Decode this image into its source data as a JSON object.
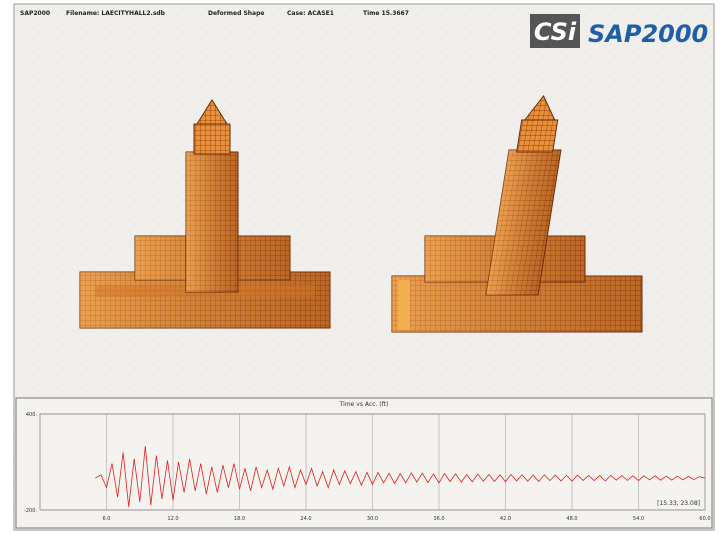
{
  "header": {
    "app": "SAP2000",
    "filename": "Filename: LAECITYHALL2.sdb",
    "view": "Deformed Shape",
    "case": "Case: ACASE1",
    "time": "Time 15.3667"
  },
  "logo": {
    "mark": "CSi",
    "product": "SAP2000"
  },
  "chart_data": {
    "type": "line",
    "title": "Time vs Acc. (ft)",
    "x": [
      5,
      5.5,
      6,
      6.5,
      7,
      7.5,
      8,
      8.5,
      9,
      9.5,
      10,
      10.5,
      11,
      11.5,
      12,
      12.5,
      13,
      13.5,
      14,
      14.5,
      15,
      15.5,
      16,
      16.5,
      17,
      17.5,
      18,
      18.5,
      19,
      19.5,
      20,
      20.5,
      21,
      21.5,
      22,
      22.5,
      23,
      23.5,
      24,
      24.5,
      25,
      25.5,
      26,
      26.5,
      27,
      27.5,
      28,
      28.5,
      29,
      29.5,
      30,
      30.5,
      31,
      31.5,
      32,
      32.5,
      33,
      33.5,
      34,
      34.5,
      35,
      35.5,
      36,
      36.5,
      37,
      37.5,
      38,
      38.5,
      39,
      39.5,
      40,
      40.5,
      41,
      41.5,
      42,
      42.5,
      43,
      43.5,
      44,
      44.5,
      45,
      45.5,
      46,
      46.5,
      47,
      47.5,
      48,
      48.5,
      49,
      49.5,
      50,
      50.5,
      51,
      51.5,
      52,
      52.5,
      53,
      53.5,
      54,
      54.5,
      55,
      55.5,
      56,
      56.5,
      57,
      57.5,
      58,
      58.5,
      59,
      59.5,
      60
    ],
    "series": [
      {
        "color": "#e02020",
        "values": [
          0,
          20,
          -60,
          90,
          -120,
          160,
          -180,
          120,
          -150,
          200,
          -170,
          140,
          -130,
          110,
          -140,
          100,
          -90,
          120,
          -80,
          90,
          -100,
          70,
          -90,
          80,
          -60,
          90,
          -70,
          60,
          -80,
          70,
          -60,
          50,
          -70,
          60,
          -50,
          70,
          -60,
          50,
          -40,
          60,
          -50,
          40,
          -60,
          50,
          -40,
          45,
          -35,
          40,
          -45,
          35,
          -40,
          35,
          -30,
          30,
          -35,
          28,
          -30,
          32,
          -25,
          30,
          -28,
          25,
          -30,
          28,
          -22,
          26,
          -25,
          22,
          -24,
          25,
          -20,
          22,
          -22,
          20,
          -24,
          22,
          -18,
          20,
          -20,
          18,
          -22,
          20,
          -16,
          18,
          -18,
          16,
          -20,
          18,
          -15,
          16,
          -16,
          15,
          -18,
          16,
          -14,
          15,
          -15,
          14,
          -16,
          14,
          -12,
          14,
          -14,
          12,
          -13,
          12,
          -12,
          10,
          -10,
          8,
          0
        ]
      }
    ],
    "xlim": [
      0,
      60
    ],
    "ylim": [
      -200,
      400
    ],
    "xticks": [
      {
        "value": 6,
        "label": "6.0"
      },
      {
        "value": 12,
        "label": "12.0"
      },
      {
        "value": 18,
        "label": "18.0"
      },
      {
        "value": 24,
        "label": "24.0"
      },
      {
        "value": 30,
        "label": "30.0"
      },
      {
        "value": 36,
        "label": "36.0"
      },
      {
        "value": 42,
        "label": "42.0"
      },
      {
        "value": 48,
        "label": "48.0"
      },
      {
        "value": 54,
        "label": "54.0"
      },
      {
        "value": 60,
        "label": "60.0"
      }
    ],
    "yticks": [
      {
        "value": -200,
        "label": "-200."
      },
      {
        "value": 400,
        "label": "400."
      }
    ],
    "annotation": "[15.33, 23.08]",
    "grid": true
  }
}
